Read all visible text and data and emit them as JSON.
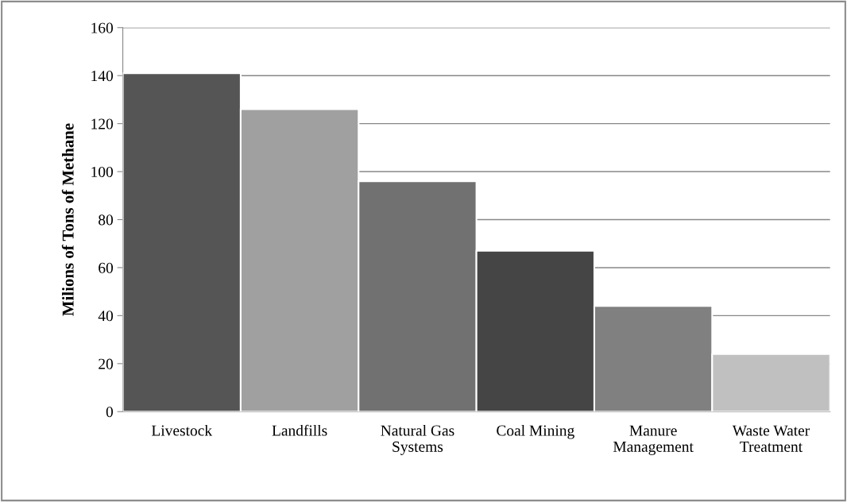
{
  "chart_data": {
    "type": "bar",
    "ylabel": "Milions of Tons of Methane",
    "categories": [
      "Livestock",
      "Landfills",
      "Natural Gas\nSystems",
      "Coal Mining",
      "Manure\nManagement",
      "Waste Water\nTreatment"
    ],
    "values": [
      141,
      126,
      96,
      67,
      44,
      24
    ],
    "colors": [
      "#555555",
      "#a0a0a0",
      "#717171",
      "#454545",
      "#808080",
      "#c0c0c0"
    ],
    "ylim": [
      0,
      160
    ],
    "yticks": [
      0,
      20,
      40,
      60,
      80,
      100,
      120,
      140,
      160
    ],
    "grid": "y",
    "legend": false
  }
}
